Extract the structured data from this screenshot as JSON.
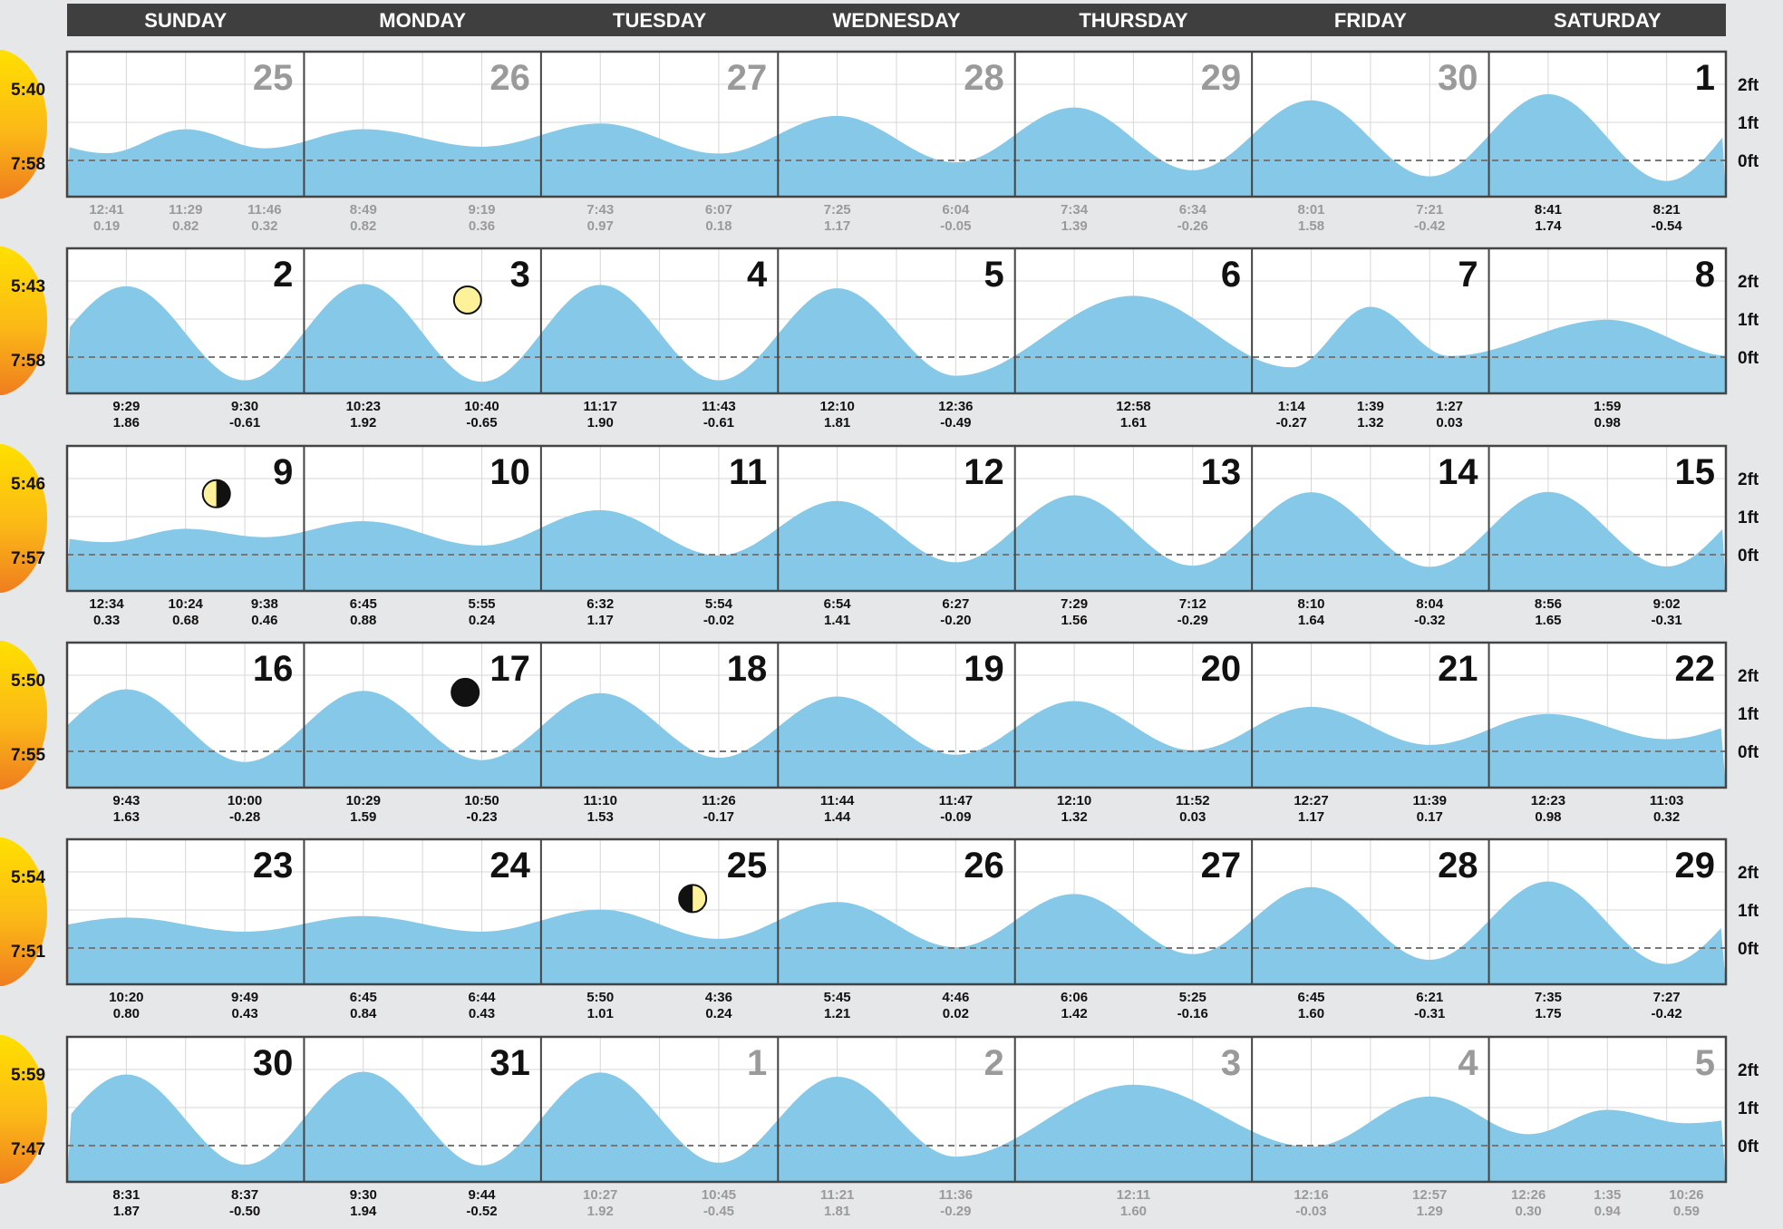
{
  "chart_data": {
    "type": "area",
    "title": "",
    "day_headers": [
      "SUNDAY",
      "MONDAY",
      "TUESDAY",
      "WEDNESDAY",
      "THURSDAY",
      "FRIDAY",
      "SATURDAY"
    ],
    "y_ticks": [
      "2ft",
      "1ft",
      "0ft"
    ],
    "ylim": [
      -0.7,
      2.6
    ],
    "grid": true,
    "colors": {
      "water": "#85c8e7",
      "header": "#3f3f3f",
      "active_day": "#111111",
      "inactive_day": "#9a9a9a",
      "sun": "#f5a623"
    },
    "weeks": [
      {
        "sunrise": "5:40",
        "sunset": "7:58",
        "days": [
          {
            "day": "25",
            "active": false
          },
          {
            "day": "26",
            "active": false
          },
          {
            "day": "27",
            "active": false
          },
          {
            "day": "28",
            "active": false
          },
          {
            "day": "29",
            "active": false
          },
          {
            "day": "30",
            "active": false
          },
          {
            "day": "1",
            "active": true
          }
        ],
        "tides": [
          {
            "day": 0,
            "time": "12:41",
            "height": 0.19,
            "active": false
          },
          {
            "day": 0,
            "time": "11:29",
            "height": 0.82,
            "active": false
          },
          {
            "day": 0,
            "time": "11:46",
            "height": 0.32,
            "active": false
          },
          {
            "day": 1,
            "time": "8:49",
            "height": 0.82,
            "active": false
          },
          {
            "day": 1,
            "time": "9:19",
            "height": 0.36,
            "active": false
          },
          {
            "day": 2,
            "time": "7:43",
            "height": 0.97,
            "active": false
          },
          {
            "day": 2,
            "time": "6:07",
            "height": 0.18,
            "active": false
          },
          {
            "day": 3,
            "time": "7:25",
            "height": 1.17,
            "active": false
          },
          {
            "day": 3,
            "time": "6:04",
            "height": -0.05,
            "active": false
          },
          {
            "day": 4,
            "time": "7:34",
            "height": 1.39,
            "active": false
          },
          {
            "day": 4,
            "time": "6:34",
            "height": -0.26,
            "active": false
          },
          {
            "day": 5,
            "time": "8:01",
            "height": 1.58,
            "active": false
          },
          {
            "day": 5,
            "time": "7:21",
            "height": -0.42,
            "active": false
          },
          {
            "day": 6,
            "time": "8:41",
            "height": 1.74,
            "active": true
          },
          {
            "day": 6,
            "time": "8:21",
            "height": -0.54,
            "active": true
          }
        ]
      },
      {
        "sunrise": "5:43",
        "sunset": "7:58",
        "days": [
          {
            "day": "2",
            "active": true
          },
          {
            "day": "3",
            "active": true
          },
          {
            "day": "4",
            "active": true
          },
          {
            "day": "5",
            "active": true
          },
          {
            "day": "6",
            "active": true
          },
          {
            "day": "7",
            "active": true
          },
          {
            "day": "8",
            "active": true
          }
        ],
        "moon": {
          "day": 1,
          "phase": "full",
          "frac": 0.69,
          "height": 1.5
        },
        "tides": [
          {
            "day": 0,
            "time": "9:29",
            "height": 1.86,
            "active": true
          },
          {
            "day": 0,
            "time": "9:30",
            "height": -0.61,
            "active": true
          },
          {
            "day": 1,
            "time": "10:23",
            "height": 1.92,
            "active": true
          },
          {
            "day": 1,
            "time": "10:40",
            "height": -0.65,
            "active": true
          },
          {
            "day": 2,
            "time": "11:17",
            "height": 1.9,
            "active": true
          },
          {
            "day": 2,
            "time": "11:43",
            "height": -0.61,
            "active": true
          },
          {
            "day": 3,
            "time": "12:10",
            "height": 1.81,
            "active": true
          },
          {
            "day": 3,
            "time": "12:36",
            "height": -0.49,
            "active": true
          },
          {
            "day": 4,
            "time": "12:58",
            "height": 1.61,
            "active": true
          },
          {
            "day": 5,
            "time": "1:14",
            "height": -0.27,
            "active": true
          },
          {
            "day": 5,
            "time": "1:39",
            "height": 1.32,
            "active": true
          },
          {
            "day": 5,
            "time": "1:27",
            "height": 0.03,
            "active": true
          },
          {
            "day": 6,
            "time": "1:59",
            "height": 0.98,
            "active": true
          }
        ]
      },
      {
        "sunrise": "5:46",
        "sunset": "7:57",
        "days": [
          {
            "day": "9",
            "active": true
          },
          {
            "day": "10",
            "active": true
          },
          {
            "day": "11",
            "active": true
          },
          {
            "day": "12",
            "active": true
          },
          {
            "day": "13",
            "active": true
          },
          {
            "day": "14",
            "active": true
          },
          {
            "day": "15",
            "active": true
          }
        ],
        "moon": {
          "day": 0,
          "phase": "last-quarter",
          "frac": 0.63,
          "height": 1.6
        },
        "tides": [
          {
            "day": 0,
            "time": "12:34",
            "height": 0.33,
            "active": true
          },
          {
            "day": 0,
            "time": "10:24",
            "height": 0.68,
            "active": true
          },
          {
            "day": 0,
            "time": "9:38",
            "height": 0.46,
            "active": true
          },
          {
            "day": 1,
            "time": "6:45",
            "height": 0.88,
            "active": true
          },
          {
            "day": 1,
            "time": "5:55",
            "height": 0.24,
            "active": true
          },
          {
            "day": 2,
            "time": "6:32",
            "height": 1.17,
            "active": true
          },
          {
            "day": 2,
            "time": "5:54",
            "height": -0.02,
            "active": true
          },
          {
            "day": 3,
            "time": "6:54",
            "height": 1.41,
            "active": true
          },
          {
            "day": 3,
            "time": "6:27",
            "height": -0.2,
            "active": true
          },
          {
            "day": 4,
            "time": "7:29",
            "height": 1.56,
            "active": true
          },
          {
            "day": 4,
            "time": "7:12",
            "height": -0.29,
            "active": true
          },
          {
            "day": 5,
            "time": "8:10",
            "height": 1.64,
            "active": true
          },
          {
            "day": 5,
            "time": "8:04",
            "height": -0.32,
            "active": true
          },
          {
            "day": 6,
            "time": "8:56",
            "height": 1.65,
            "active": true
          },
          {
            "day": 6,
            "time": "9:02",
            "height": -0.31,
            "active": true
          }
        ]
      },
      {
        "sunrise": "5:50",
        "sunset": "7:55",
        "days": [
          {
            "day": "16",
            "active": true
          },
          {
            "day": "17",
            "active": true
          },
          {
            "day": "18",
            "active": true
          },
          {
            "day": "19",
            "active": true
          },
          {
            "day": "20",
            "active": true
          },
          {
            "day": "21",
            "active": true
          },
          {
            "day": "22",
            "active": true
          }
        ],
        "moon": {
          "day": 1,
          "phase": "new",
          "frac": 0.68,
          "height": 1.55
        },
        "tides": [
          {
            "day": 0,
            "time": "9:43",
            "height": 1.63,
            "active": true
          },
          {
            "day": 0,
            "time": "10:00",
            "height": -0.28,
            "active": true
          },
          {
            "day": 1,
            "time": "10:29",
            "height": 1.59,
            "active": true
          },
          {
            "day": 1,
            "time": "10:50",
            "height": -0.23,
            "active": true
          },
          {
            "day": 2,
            "time": "11:10",
            "height": 1.53,
            "active": true
          },
          {
            "day": 2,
            "time": "11:26",
            "height": -0.17,
            "active": true
          },
          {
            "day": 3,
            "time": "11:44",
            "height": 1.44,
            "active": true
          },
          {
            "day": 3,
            "time": "11:47",
            "height": -0.09,
            "active": true
          },
          {
            "day": 4,
            "time": "12:10",
            "height": 1.32,
            "active": true
          },
          {
            "day": 4,
            "time": "11:52",
            "height": 0.03,
            "active": true
          },
          {
            "day": 5,
            "time": "12:27",
            "height": 1.17,
            "active": true
          },
          {
            "day": 5,
            "time": "11:39",
            "height": 0.17,
            "active": true
          },
          {
            "day": 6,
            "time": "12:23",
            "height": 0.98,
            "active": true
          },
          {
            "day": 6,
            "time": "11:03",
            "height": 0.32,
            "active": true
          }
        ]
      },
      {
        "sunrise": "5:54",
        "sunset": "7:51",
        "days": [
          {
            "day": "23",
            "active": true
          },
          {
            "day": "24",
            "active": true
          },
          {
            "day": "25",
            "active": true
          },
          {
            "day": "26",
            "active": true
          },
          {
            "day": "27",
            "active": true
          },
          {
            "day": "28",
            "active": true
          },
          {
            "day": "29",
            "active": true
          }
        ],
        "moon": {
          "day": 2,
          "phase": "first-quarter",
          "frac": 0.64,
          "height": 1.3
        },
        "tides": [
          {
            "day": 0,
            "time": "10:20",
            "height": 0.8,
            "active": true
          },
          {
            "day": 0,
            "time": "9:49",
            "height": 0.43,
            "active": true
          },
          {
            "day": 1,
            "time": "6:45",
            "height": 0.84,
            "active": true
          },
          {
            "day": 1,
            "time": "6:44",
            "height": 0.43,
            "active": true
          },
          {
            "day": 2,
            "time": "5:50",
            "height": 1.01,
            "active": true
          },
          {
            "day": 2,
            "time": "4:36",
            "height": 0.24,
            "active": true
          },
          {
            "day": 3,
            "time": "5:45",
            "height": 1.21,
            "active": true
          },
          {
            "day": 3,
            "time": "4:46",
            "height": 0.02,
            "active": true
          },
          {
            "day": 4,
            "time": "6:06",
            "height": 1.42,
            "active": true
          },
          {
            "day": 4,
            "time": "5:25",
            "height": -0.16,
            "active": true
          },
          {
            "day": 5,
            "time": "6:45",
            "height": 1.6,
            "active": true
          },
          {
            "day": 5,
            "time": "6:21",
            "height": -0.31,
            "active": true
          },
          {
            "day": 6,
            "time": "7:35",
            "height": 1.75,
            "active": true
          },
          {
            "day": 6,
            "time": "7:27",
            "height": -0.42,
            "active": true
          }
        ]
      },
      {
        "sunrise": "5:59",
        "sunset": "7:47",
        "days": [
          {
            "day": "30",
            "active": true
          },
          {
            "day": "31",
            "active": true
          },
          {
            "day": "1",
            "active": false
          },
          {
            "day": "2",
            "active": false
          },
          {
            "day": "3",
            "active": false
          },
          {
            "day": "4",
            "active": false
          },
          {
            "day": "5",
            "active": false
          }
        ],
        "tides": [
          {
            "day": 0,
            "time": "8:31",
            "height": 1.87,
            "active": true
          },
          {
            "day": 0,
            "time": "8:37",
            "height": -0.5,
            "active": true
          },
          {
            "day": 1,
            "time": "9:30",
            "height": 1.94,
            "active": true
          },
          {
            "day": 1,
            "time": "9:44",
            "height": -0.52,
            "active": true
          },
          {
            "day": 2,
            "time": "10:27",
            "height": 1.92,
            "active": false
          },
          {
            "day": 2,
            "time": "10:45",
            "height": -0.45,
            "active": false
          },
          {
            "day": 3,
            "time": "11:21",
            "height": 1.81,
            "active": false
          },
          {
            "day": 3,
            "time": "11:36",
            "height": -0.29,
            "active": false
          },
          {
            "day": 4,
            "time": "12:11",
            "height": 1.6,
            "active": false
          },
          {
            "day": 5,
            "time": "12:16",
            "height": -0.03,
            "active": false
          },
          {
            "day": 5,
            "time": "12:57",
            "height": 1.29,
            "active": false
          },
          {
            "day": 6,
            "time": "12:26",
            "height": 0.3,
            "active": false
          },
          {
            "day": 6,
            "time": "1:35",
            "height": 0.94,
            "active": false
          },
          {
            "day": 6,
            "time": "10:26",
            "height": 0.59,
            "active": false
          }
        ]
      }
    ]
  }
}
